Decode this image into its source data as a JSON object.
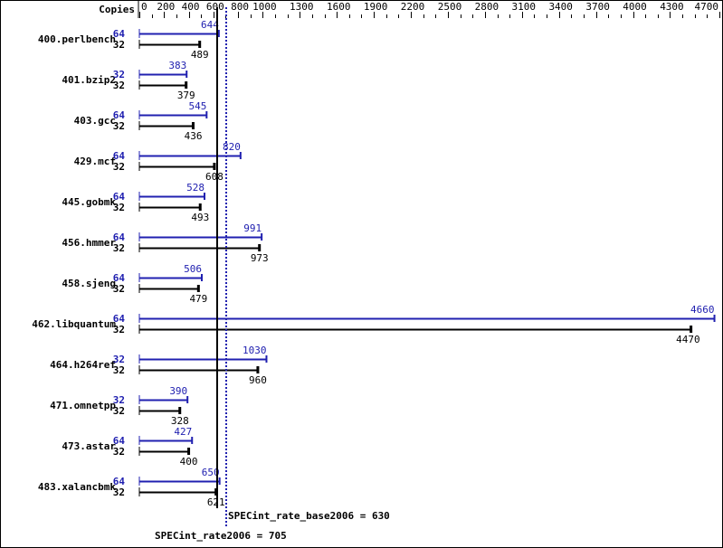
{
  "chart_data": {
    "type": "bar",
    "orientation": "horizontal",
    "axis_header": "Copies",
    "xlim": [
      0,
      4700
    ],
    "tick_labels": [
      0,
      200,
      400,
      600,
      800,
      1000,
      1300,
      1600,
      1900,
      2200,
      2500,
      2800,
      3100,
      3400,
      3700,
      4000,
      4300,
      4700
    ],
    "minor_tick_step": 100,
    "colors": {
      "peak": "#2020b0",
      "base": "#000000"
    },
    "benchmarks": [
      {
        "name": "400.perlbench",
        "peak_copies": 64,
        "peak": 644,
        "base_copies": 32,
        "base": 489
      },
      {
        "name": "401.bzip2",
        "peak_copies": 32,
        "peak": 383,
        "base_copies": 32,
        "base": 379
      },
      {
        "name": "403.gcc",
        "peak_copies": 64,
        "peak": 545,
        "base_copies": 32,
        "base": 436
      },
      {
        "name": "429.mcf",
        "peak_copies": 64,
        "peak": 820,
        "base_copies": 32,
        "base": 608
      },
      {
        "name": "445.gobmk",
        "peak_copies": 64,
        "peak": 528,
        "base_copies": 32,
        "base": 493
      },
      {
        "name": "456.hmmer",
        "peak_copies": 64,
        "peak": 991,
        "base_copies": 32,
        "base": 973
      },
      {
        "name": "458.sjeng",
        "peak_copies": 64,
        "peak": 506,
        "base_copies": 32,
        "base": 479
      },
      {
        "name": "462.libquantum",
        "peak_copies": 64,
        "peak": 4660,
        "base_copies": 32,
        "base": 4470
      },
      {
        "name": "464.h264ref",
        "peak_copies": 32,
        "peak": 1030,
        "base_copies": 32,
        "base": 960
      },
      {
        "name": "471.omnetpp",
        "peak_copies": 32,
        "peak": 390,
        "base_copies": 32,
        "base": 328
      },
      {
        "name": "473.astar",
        "peak_copies": 64,
        "peak": 427,
        "base_copies": 32,
        "base": 400
      },
      {
        "name": "483.xalancbmk",
        "peak_copies": 64,
        "peak": 650,
        "base_copies": 32,
        "base": 621
      }
    ],
    "base_metric": {
      "label": "SPECint_rate_base2006 = 630",
      "value": 630
    },
    "peak_metric": {
      "label": "SPECint_rate2006 = 705",
      "value": 705
    }
  }
}
